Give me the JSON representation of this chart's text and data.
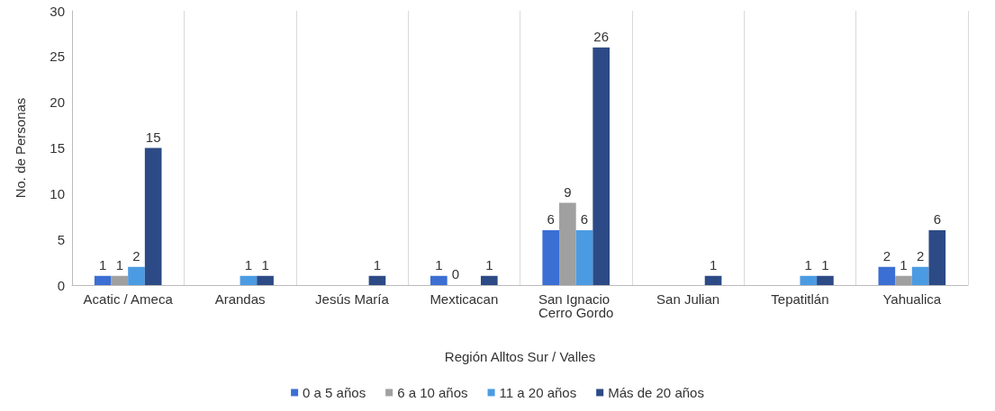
{
  "chart_data": {
    "type": "bar",
    "xlabel": "Región Alltos Sur / Valles",
    "ylabel": "No. de Personas",
    "categories": [
      "Acatic / Ameca",
      "Arandas",
      "Jesús María",
      "Mexticacan",
      "San Ignacio Cerro Gordo",
      "San Julian",
      "Tepatitlán",
      "Yahualica"
    ],
    "series": [
      {
        "name": "0 a 5 años",
        "color": "#3b6fd3",
        "values": [
          1,
          null,
          null,
          1,
          6,
          null,
          null,
          2
        ]
      },
      {
        "name": "6 a 10 años",
        "color": "#a0a0a0",
        "values": [
          1,
          null,
          null,
          0,
          9,
          null,
          null,
          1
        ]
      },
      {
        "name": "11 a 20 años",
        "color": "#4b9be3",
        "values": [
          2,
          1,
          null,
          null,
          6,
          null,
          1,
          2
        ]
      },
      {
        "name": "Más de 20 años",
        "color": "#2c4a85",
        "values": [
          15,
          1,
          1,
          1,
          26,
          1,
          1,
          6
        ]
      }
    ],
    "ylim": [
      0,
      30
    ],
    "yticks": [
      0,
      5,
      10,
      15,
      20,
      25,
      30
    ],
    "grid": "x",
    "legend": "bottom",
    "data_labels": true
  }
}
